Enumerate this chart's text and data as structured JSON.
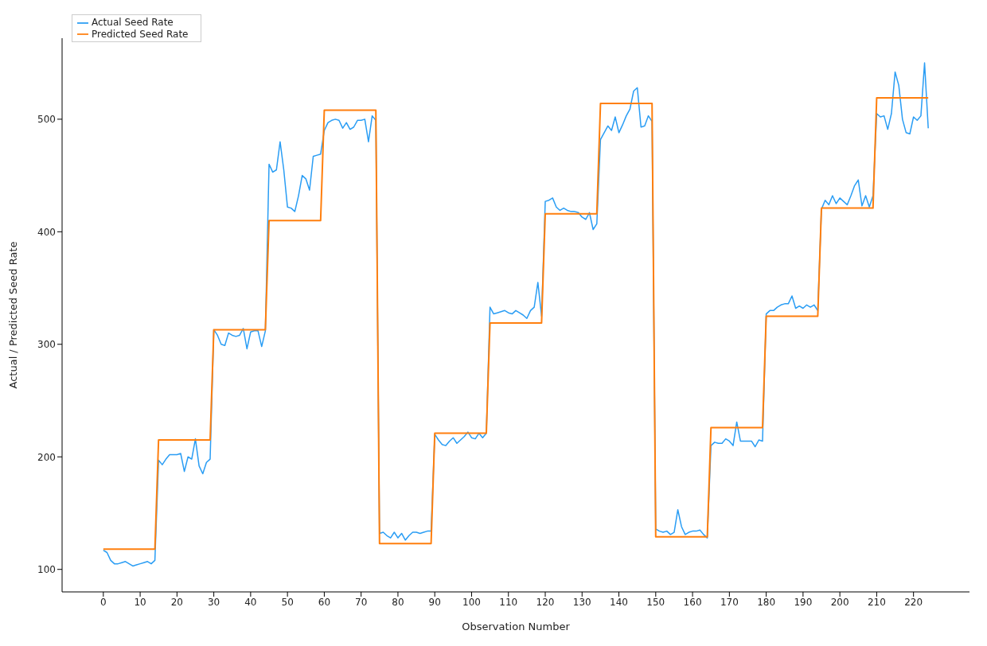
{
  "chart_data": {
    "type": "line",
    "xlabel": "Observation Number",
    "ylabel": "Actual / Predicted Seed Rate",
    "xlim": [
      -11.2,
      235.2
    ],
    "ylim": [
      80,
      572
    ],
    "xticks": [
      0,
      10,
      20,
      30,
      40,
      50,
      60,
      70,
      80,
      90,
      100,
      110,
      120,
      130,
      140,
      150,
      160,
      170,
      180,
      190,
      200,
      210,
      220
    ],
    "yticks": [
      100,
      200,
      300,
      400,
      500
    ],
    "grid": false,
    "legend": "top left",
    "marker": "none",
    "line_style": "solid",
    "x": [
      0,
      1,
      2,
      3,
      4,
      5,
      6,
      7,
      8,
      9,
      10,
      11,
      12,
      13,
      14,
      15,
      16,
      17,
      18,
      19,
      20,
      21,
      22,
      23,
      24,
      25,
      26,
      27,
      28,
      29,
      30,
      31,
      32,
      33,
      34,
      35,
      36,
      37,
      38,
      39,
      40,
      41,
      42,
      43,
      44,
      45,
      46,
      47,
      48,
      49,
      50,
      51,
      52,
      53,
      54,
      55,
      56,
      57,
      58,
      59,
      60,
      61,
      62,
      63,
      64,
      65,
      66,
      67,
      68,
      69,
      70,
      71,
      72,
      73,
      74,
      75,
      76,
      77,
      78,
      79,
      80,
      81,
      82,
      83,
      84,
      85,
      86,
      87,
      88,
      89,
      90,
      91,
      92,
      93,
      94,
      95,
      96,
      97,
      98,
      99,
      100,
      101,
      102,
      103,
      104,
      105,
      106,
      107,
      108,
      109,
      110,
      111,
      112,
      113,
      114,
      115,
      116,
      117,
      118,
      119,
      120,
      121,
      122,
      123,
      124,
      125,
      126,
      127,
      128,
      129,
      130,
      131,
      132,
      133,
      134,
      135,
      136,
      137,
      138,
      139,
      140,
      141,
      142,
      143,
      144,
      145,
      146,
      147,
      148,
      149,
      150,
      151,
      152,
      153,
      154,
      155,
      156,
      157,
      158,
      159,
      160,
      161,
      162,
      163,
      164,
      165,
      166,
      167,
      168,
      169,
      170,
      171,
      172,
      173,
      174,
      175,
      176,
      177,
      178,
      179,
      180,
      181,
      182,
      183,
      184,
      185,
      186,
      187,
      188,
      189,
      190,
      191,
      192,
      193,
      194,
      195,
      196,
      197,
      198,
      199,
      200,
      201,
      202,
      203,
      204,
      205,
      206,
      207,
      208,
      209,
      210,
      211,
      212,
      213,
      214,
      215,
      216,
      217,
      218,
      219,
      220,
      221,
      222,
      223,
      224
    ],
    "series": [
      {
        "name": "Actual Seed Rate",
        "color": "#2a9df4",
        "values": [
          117,
          115,
          108,
          105,
          105,
          106,
          107,
          105,
          103,
          104,
          105,
          106,
          107,
          105,
          108,
          197,
          193,
          198,
          202,
          202,
          202,
          203,
          187,
          200,
          198,
          216,
          192,
          185,
          195,
          198,
          313,
          308,
          300,
          299,
          310,
          308,
          307,
          308,
          314,
          296,
          311,
          312,
          312,
          298,
          312,
          460,
          453,
          455,
          480,
          455,
          422,
          421,
          418,
          432,
          450,
          447,
          437,
          467,
          468,
          469,
          490,
          497,
          499,
          500,
          499,
          492,
          497,
          491,
          493,
          499,
          499,
          500,
          480,
          503,
          499,
          132,
          133,
          130,
          128,
          133,
          128,
          132,
          126,
          130,
          133,
          133,
          132,
          133,
          134,
          134,
          220,
          215,
          211,
          210,
          214,
          217,
          212,
          215,
          218,
          222,
          217,
          216,
          221,
          217,
          221,
          333,
          327,
          328,
          329,
          330,
          328,
          327,
          330,
          328,
          326,
          323,
          330,
          333,
          355,
          325,
          427,
          428,
          430,
          422,
          419,
          421,
          419,
          418,
          418,
          417,
          413,
          411,
          417,
          402,
          407,
          482,
          488,
          494,
          490,
          502,
          488,
          495,
          503,
          509,
          525,
          528,
          493,
          494,
          503,
          498,
          136,
          134,
          133,
          134,
          131,
          133,
          153,
          138,
          131,
          133,
          134,
          134,
          135,
          131,
          128,
          210,
          213,
          212,
          212,
          216,
          214,
          210,
          231,
          214,
          214,
          214,
          214,
          209,
          215,
          214,
          327,
          330,
          330,
          333,
          335,
          336,
          336,
          343,
          332,
          334,
          332,
          335,
          333,
          335,
          330,
          420,
          428,
          424,
          432,
          425,
          430,
          427,
          424,
          432,
          441,
          446,
          423,
          432,
          422,
          432,
          505,
          502,
          503,
          491,
          505,
          542,
          530,
          500,
          488,
          487,
          502,
          499,
          503,
          550,
          492
        ]
      },
      {
        "name": "Predicted Seed Rate",
        "color": "#ff7f0e",
        "x": [
          0,
          14,
          15,
          29,
          30,
          44,
          45,
          59,
          60,
          74,
          75,
          89,
          90,
          104,
          105,
          119,
          120,
          134,
          135,
          149,
          150,
          164,
          165,
          179,
          180,
          194,
          195,
          209,
          210,
          224
        ],
        "values": [
          118,
          118,
          215,
          215,
          313,
          313,
          410,
          410,
          508,
          508,
          123,
          123,
          221,
          221,
          319,
          319,
          416,
          416,
          514,
          514,
          129,
          129,
          226,
          226,
          325,
          325,
          421,
          421,
          519,
          519
        ]
      }
    ]
  }
}
